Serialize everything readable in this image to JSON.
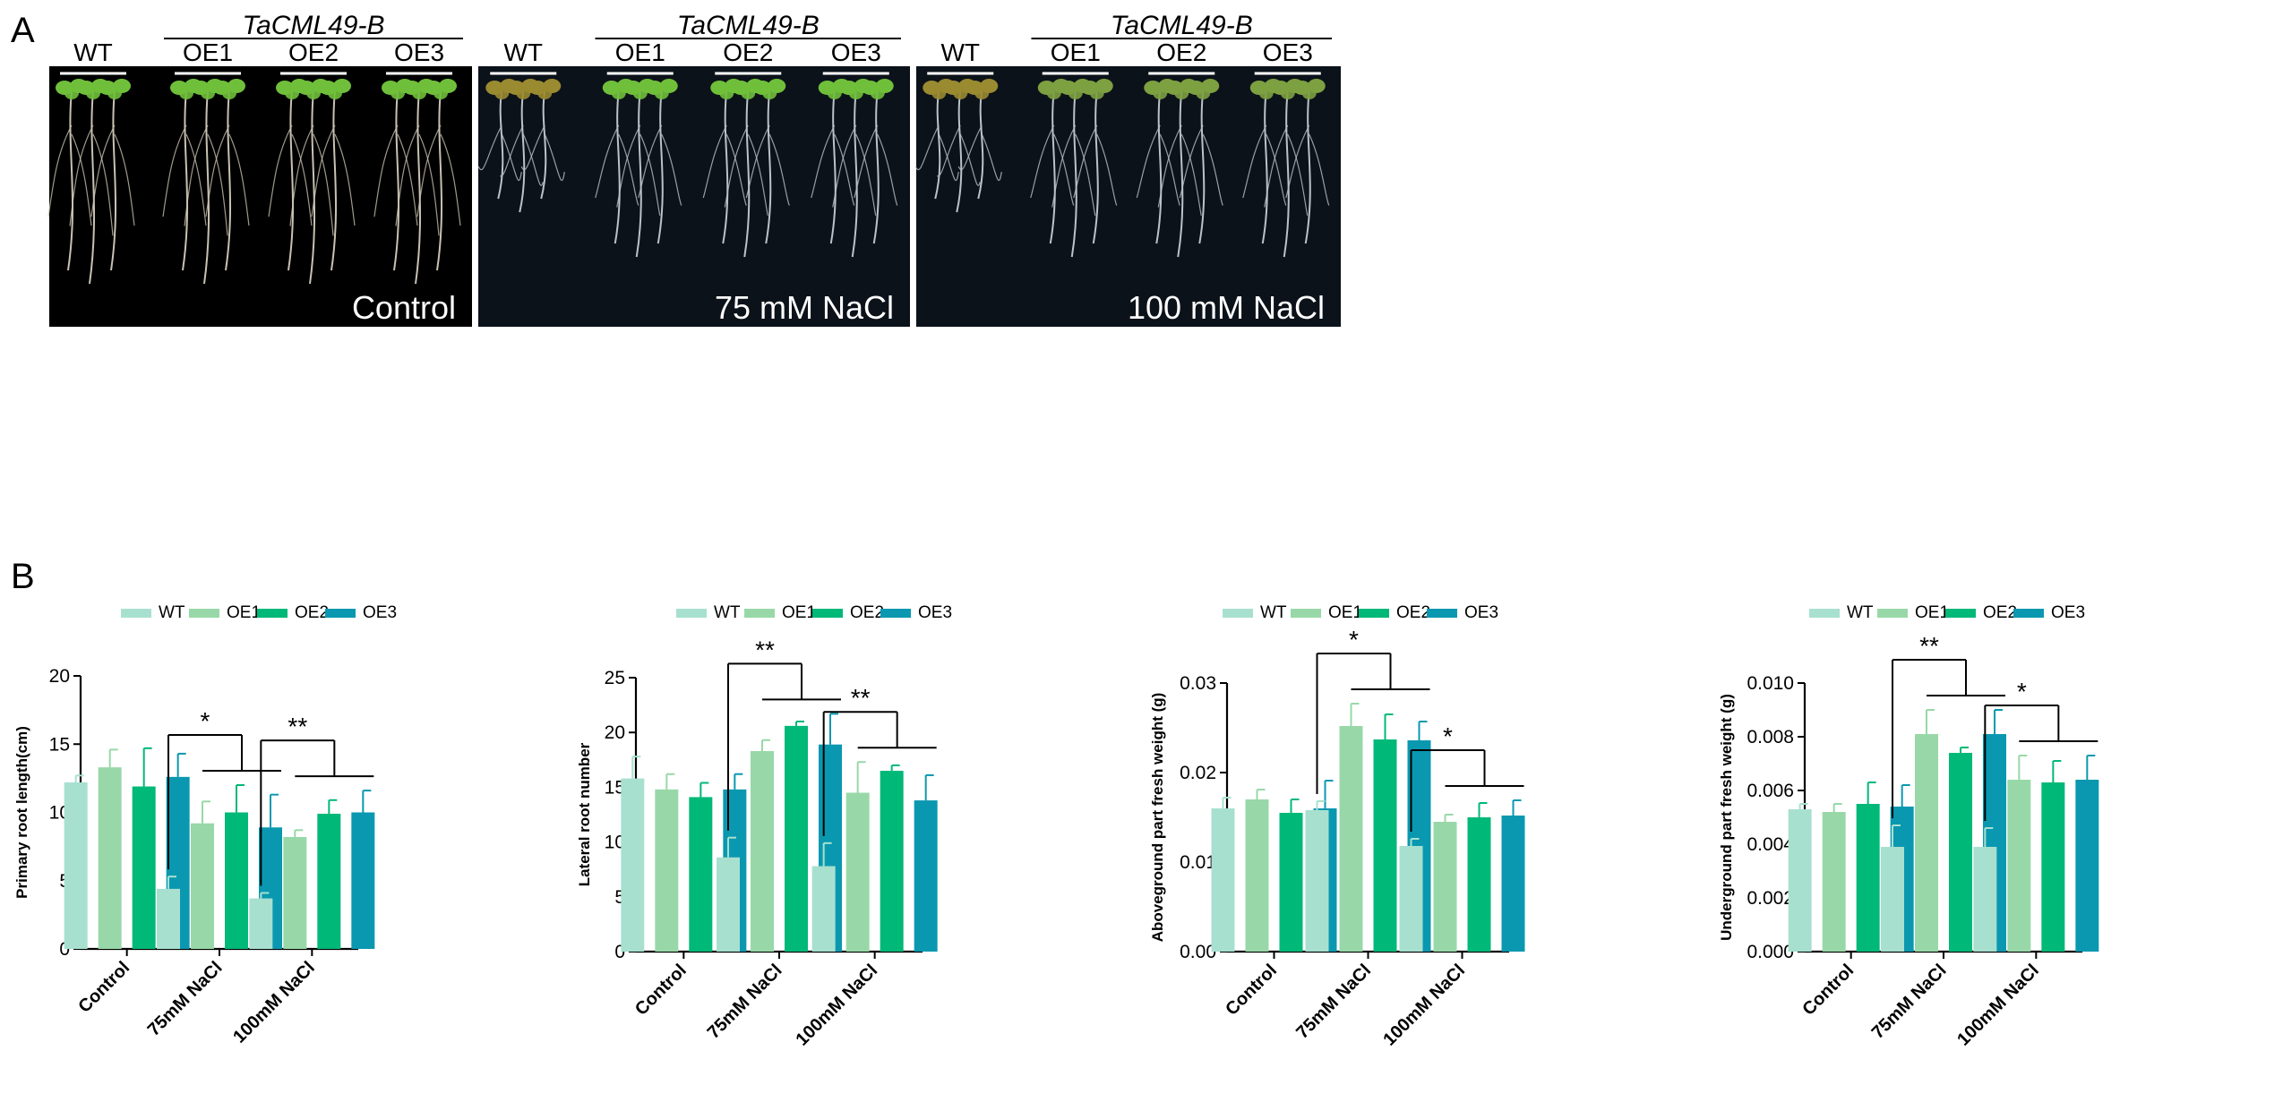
{
  "panels": {
    "a_label": "A",
    "b_label": "B"
  },
  "photo_panels": [
    {
      "treatment": "Control",
      "transgene": "TaCML49-B",
      "lines": [
        "WT",
        "OE1",
        "OE2",
        "OE3"
      ]
    },
    {
      "treatment": "75 mM NaCl",
      "transgene": "TaCML49-B",
      "lines": [
        "WT",
        "OE1",
        "OE2",
        "OE3"
      ]
    },
    {
      "treatment": "100 mM NaCl",
      "transgene": "TaCML49-B",
      "lines": [
        "WT",
        "OE1",
        "OE2",
        "OE3"
      ]
    }
  ],
  "legend": [
    "WT",
    "OE1",
    "OE2",
    "OE3"
  ],
  "colors": {
    "WT": "#a8e0d0",
    "OE1": "#98d8a8",
    "OE2": "#00b878",
    "OE3": "#0a98b0",
    "photo_bg": "#000000",
    "photo_text": "#ffffff"
  },
  "chart_data": [
    {
      "type": "bar",
      "categories": [
        "Control",
        "75mM NaCl",
        "100mM NaCl"
      ],
      "series": [
        {
          "name": "WT",
          "values": [
            12.2,
            4.4,
            3.7
          ],
          "errors": [
            0.5,
            0.9,
            0.4
          ]
        },
        {
          "name": "OE1",
          "values": [
            13.3,
            9.2,
            8.2
          ],
          "errors": [
            1.3,
            1.6,
            0.5
          ]
        },
        {
          "name": "OE2",
          "values": [
            11.9,
            10.0,
            9.9
          ],
          "errors": [
            2.8,
            2.0,
            1.0
          ]
        },
        {
          "name": "OE3",
          "values": [
            12.6,
            8.9,
            10.0
          ],
          "errors": [
            1.7,
            2.4,
            1.6
          ]
        }
      ],
      "ylabel": "Primary root length(cm)",
      "ylim": [
        0,
        20
      ],
      "yticks": [
        "0",
        "5",
        "10",
        "15",
        "20"
      ],
      "significance": [
        "",
        "*",
        "**"
      ]
    },
    {
      "type": "bar",
      "categories": [
        "Control",
        "75mM NaCl",
        "100mM NaCl"
      ],
      "series": [
        {
          "name": "WT",
          "values": [
            15.8,
            8.6,
            7.8
          ],
          "errors": [
            2.0,
            1.8,
            2.1
          ]
        },
        {
          "name": "OE1",
          "values": [
            14.8,
            18.3,
            14.5
          ],
          "errors": [
            1.4,
            1.0,
            2.8
          ]
        },
        {
          "name": "OE2",
          "values": [
            14.1,
            20.6,
            16.5
          ],
          "errors": [
            1.3,
            0.4,
            0.5
          ]
        },
        {
          "name": "OE3",
          "values": [
            14.8,
            18.9,
            13.8
          ],
          "errors": [
            1.4,
            2.8,
            2.3
          ]
        }
      ],
      "ylabel": "Lateral root number",
      "ylim": [
        0,
        25
      ],
      "yticks": [
        "0",
        "5",
        "10",
        "15",
        "20",
        "25"
      ],
      "significance": [
        "",
        "**",
        "**"
      ]
    },
    {
      "type": "bar",
      "categories": [
        "Control",
        "75mM NaCl",
        "100mM NaCl"
      ],
      "series": [
        {
          "name": "WT",
          "values": [
            0.016,
            0.0158,
            0.0118
          ],
          "errors": [
            0.0012,
            0.001,
            0.0008
          ]
        },
        {
          "name": "OE1",
          "values": [
            0.017,
            0.0252,
            0.0145
          ],
          "errors": [
            0.0011,
            0.0025,
            0.0008
          ]
        },
        {
          "name": "OE2",
          "values": [
            0.0155,
            0.0237,
            0.015
          ],
          "errors": [
            0.0015,
            0.0028,
            0.0016
          ]
        },
        {
          "name": "OE3",
          "values": [
            0.016,
            0.0236,
            0.0152
          ],
          "errors": [
            0.0031,
            0.0021,
            0.0017
          ]
        }
      ],
      "ylabel": "Aboveground part fresh weight (g)",
      "ylim": [
        0,
        0.03
      ],
      "yticks": [
        "0.00",
        "0.01",
        "0.02",
        "0.03"
      ],
      "significance": [
        "",
        "*",
        "*"
      ]
    },
    {
      "type": "bar",
      "categories": [
        "Control",
        "75mM NaCl",
        "100mM NaCl"
      ],
      "series": [
        {
          "name": "WT",
          "values": [
            0.0053,
            0.0039,
            0.0039
          ],
          "errors": [
            0.0002,
            0.0008,
            0.0007
          ]
        },
        {
          "name": "OE1",
          "values": [
            0.0052,
            0.0081,
            0.0064
          ],
          "errors": [
            0.0003,
            0.0009,
            0.0009
          ]
        },
        {
          "name": "OE2",
          "values": [
            0.0055,
            0.0074,
            0.0063
          ],
          "errors": [
            0.0008,
            0.0002,
            0.0008
          ]
        },
        {
          "name": "OE3",
          "values": [
            0.0054,
            0.0081,
            0.0064
          ],
          "errors": [
            0.0008,
            0.0009,
            0.0009
          ]
        }
      ],
      "ylabel": "Underground part fresh weight (g)",
      "ylim": [
        0,
        0.01
      ],
      "yticks": [
        "0.000",
        "0.002",
        "0.004",
        "0.006",
        "0.008",
        "0.010"
      ],
      "significance": [
        "",
        "**",
        "*"
      ]
    }
  ]
}
